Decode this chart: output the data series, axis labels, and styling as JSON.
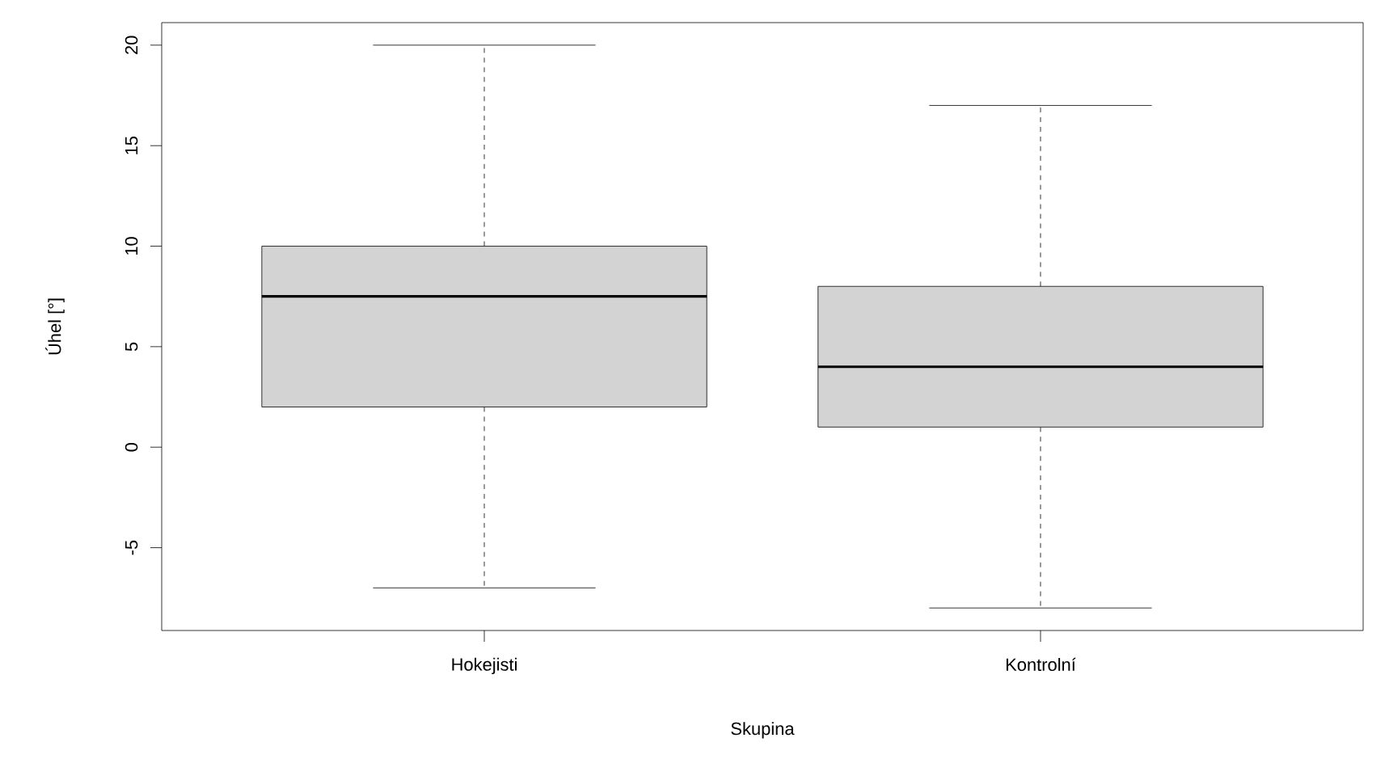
{
  "chart_data": {
    "type": "box",
    "xlabel": "Skupina",
    "ylabel": "Úhel [°]",
    "categories": [
      "Hokejisti",
      "Kontrolní"
    ],
    "boxes": [
      {
        "low": -7,
        "q1": 2,
        "median": 7.5,
        "q3": 10,
        "high": 20
      },
      {
        "low": -8,
        "q1": 1,
        "median": 4,
        "q3": 8,
        "high": 17
      }
    ],
    "color": "#d3d3d3",
    "ylim": [
      -9.12,
      21.12
    ],
    "yticks": [
      -5,
      0,
      5,
      10,
      15,
      20
    ]
  }
}
